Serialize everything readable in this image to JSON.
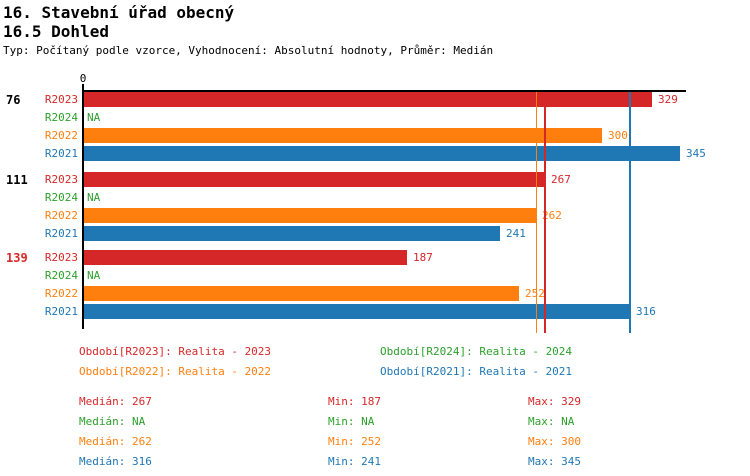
{
  "page": {
    "title_line1": "16. Stavební úřad obecný",
    "title_line2": "16.5 Dohled",
    "meta_line": "Typ: Počítaný podle vzorce, Vyhodnocení: Absolutní hodnoty, Průměr: Medián"
  },
  "colors": {
    "R2023": "#d62728",
    "R2024": "#2ca02c",
    "R2022": "#ff7f0e",
    "R2021": "#1f77b4",
    "axis": "#000000",
    "group_label_default": "#000000",
    "group_label_highlight": "#d62728"
  },
  "chart_data": {
    "type": "bar",
    "orientation": "horizontal",
    "value_axis": {
      "zero_label": "0",
      "range": [
        0,
        348
      ],
      "grid": false
    },
    "series_order": [
      "R2023",
      "R2024",
      "R2022",
      "R2021"
    ],
    "series_colors": {
      "R2023": "#d62728",
      "R2024": "#2ca02c",
      "R2022": "#ff7f0e",
      "R2021": "#1f77b4"
    },
    "na_label": "NA",
    "groups": [
      {
        "label": "76",
        "label_color": "#000000",
        "values": {
          "R2023": 329,
          "R2024": null,
          "R2022": 300,
          "R2021": 345
        }
      },
      {
        "label": "111",
        "label_color": "#000000",
        "values": {
          "R2023": 267,
          "R2024": null,
          "R2022": 262,
          "R2021": 241
        }
      },
      {
        "label": "139",
        "label_color": "#d62728",
        "values": {
          "R2023": 187,
          "R2024": null,
          "R2022": 252,
          "R2021": 316
        }
      }
    ],
    "reference_lines": [
      {
        "value": 262,
        "color": "#ff7f0e"
      },
      {
        "value": 267,
        "color": "#d62728"
      },
      {
        "value": 316,
        "color": "#1f77b4"
      }
    ],
    "legend_position": "bottom"
  },
  "legend": {
    "items": [
      {
        "label": "Období[R2023]: Realita - 2023",
        "series": "R2023",
        "color": "#d62728",
        "row": 0,
        "col": 0
      },
      {
        "label": "Období[R2024]: Realita - 2024",
        "series": "R2024",
        "color": "#2ca02c",
        "row": 0,
        "col": 1
      },
      {
        "label": "Období[R2022]: Realita - 2022",
        "series": "R2022",
        "color": "#ff7f0e",
        "row": 1,
        "col": 0
      },
      {
        "label": "Období[R2021]: Realita - 2021",
        "series": "R2021",
        "color": "#1f77b4",
        "row": 1,
        "col": 1
      }
    ]
  },
  "stats": {
    "rows": [
      {
        "series": "R2023",
        "color": "#d62728",
        "cells": [
          "Medián: 267",
          "Min: 187",
          "Max: 329"
        ]
      },
      {
        "series": "R2024",
        "color": "#2ca02c",
        "cells": [
          "Medián: NA",
          "Min: NA",
          "Max: NA"
        ]
      },
      {
        "series": "R2022",
        "color": "#ff7f0e",
        "cells": [
          "Medián: 262",
          "Min: 252",
          "Max: 300"
        ]
      },
      {
        "series": "R2021",
        "color": "#1f77b4",
        "cells": [
          "Medián: 316",
          "Min: 241",
          "Max: 345"
        ]
      }
    ]
  }
}
